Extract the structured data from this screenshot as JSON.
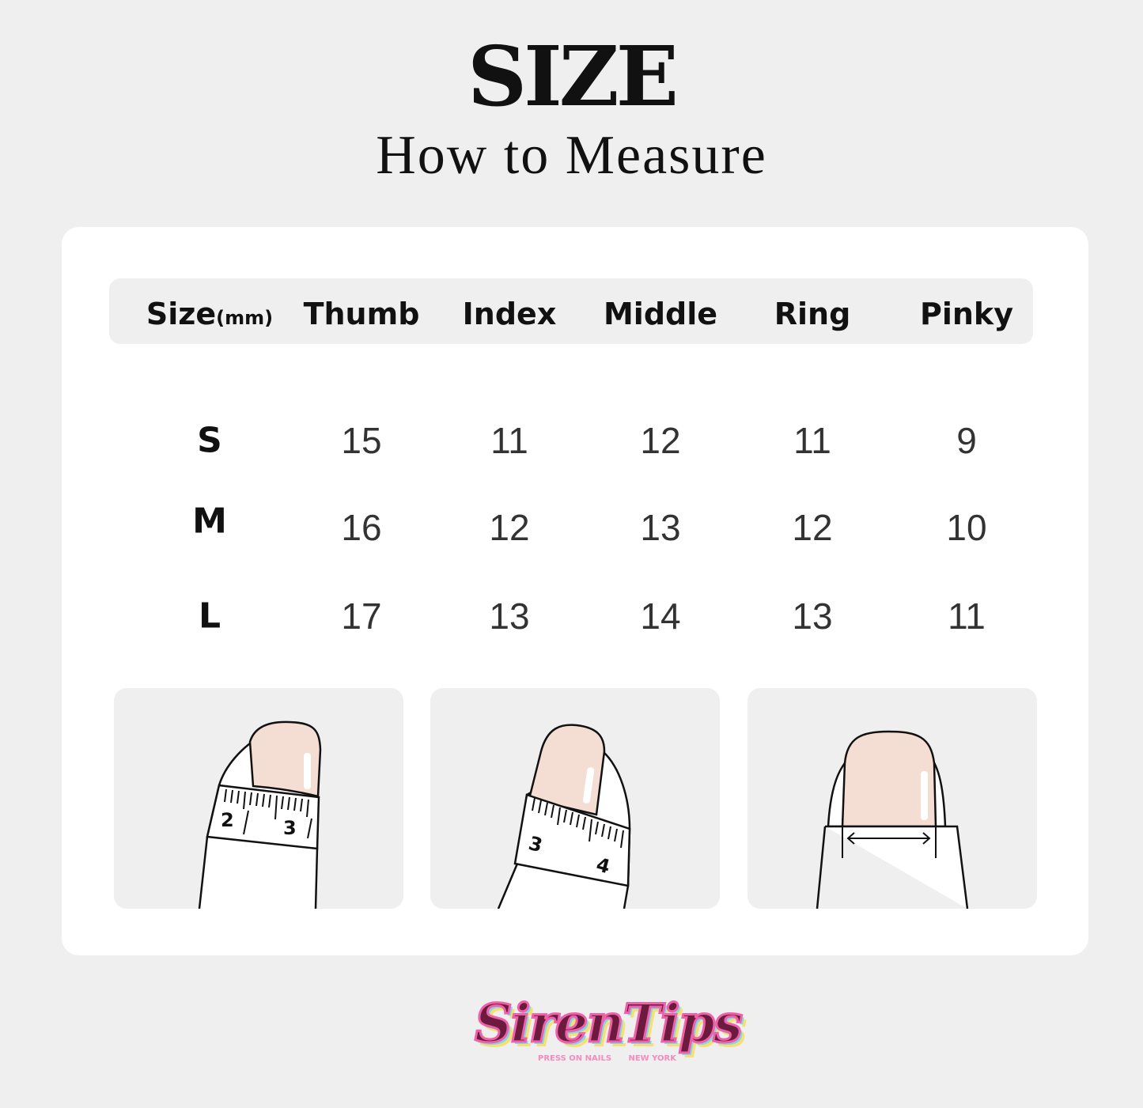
{
  "header": {
    "title": "SIZE",
    "subtitle": "How to Measure"
  },
  "table": {
    "size_label": "Size",
    "unit_label": "(mm)",
    "columns": [
      "Thumb",
      "Index",
      "Middle",
      "Ring",
      "Pinky"
    ],
    "rows": [
      {
        "size": "S",
        "values": [
          "15",
          "11",
          "12",
          "11",
          "9"
        ]
      },
      {
        "size": "M",
        "values": [
          "16",
          "12",
          "13",
          "12",
          "10"
        ]
      },
      {
        "size": "L",
        "values": [
          "17",
          "13",
          "14",
          "13",
          "11"
        ]
      }
    ]
  },
  "illustrations": {
    "panel1_tape_numbers": [
      "2",
      "3"
    ],
    "panel2_tape_numbers": [
      "3",
      "4"
    ]
  },
  "logo": {
    "name": "SirenTips",
    "tagline": "PRESS ON NAILS",
    "location": "NEW YORK"
  },
  "colors": {
    "background": "#efefef",
    "card": "#ffffff",
    "nail": "#f4ddd3"
  }
}
